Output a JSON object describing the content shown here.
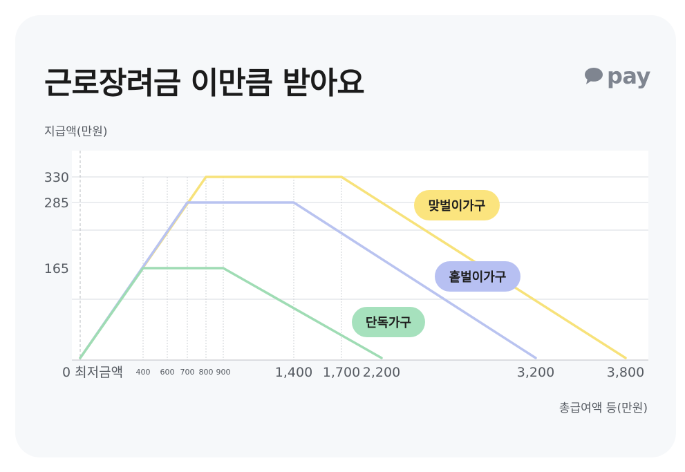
{
  "header": {
    "title": "근로장려금 이만큼 받아요",
    "brand": "pay",
    "brand_icon": "speech-bubble-icon"
  },
  "chart_data": {
    "type": "line",
    "title": "근로장려금 이만큼 받아요",
    "ylabel": "지급액(만원)",
    "xlabel": "총급여액 등(만원)",
    "x_origin_label": "0 최저금액",
    "ylim": [
      0,
      330
    ],
    "yticks": [
      {
        "value": 330,
        "label": "330"
      },
      {
        "value": 285,
        "label": "285"
      },
      {
        "value": 165,
        "label": "165"
      }
    ],
    "xticks": [
      {
        "value": 400,
        "label": "400",
        "size": "small"
      },
      {
        "value": 600,
        "label": "600",
        "size": "small"
      },
      {
        "value": 700,
        "label": "700",
        "size": "small"
      },
      {
        "value": 800,
        "label": "800",
        "size": "small"
      },
      {
        "value": 900,
        "label": "900",
        "size": "small"
      },
      {
        "value": 1400,
        "label": "1,400",
        "size": "big"
      },
      {
        "value": 1700,
        "label": "1,700",
        "size": "big"
      },
      {
        "value": 2200,
        "label": "2,200",
        "size": "big"
      },
      {
        "value": 3200,
        "label": "3,200",
        "size": "big"
      },
      {
        "value": 3800,
        "label": "3,800",
        "size": "big"
      }
    ],
    "series": [
      {
        "name": "맞벌이가구",
        "color": "#f7e27a",
        "pill_color": "#fbe47e",
        "points": [
          [
            0,
            0
          ],
          [
            800,
            330
          ],
          [
            1700,
            330
          ],
          [
            3800,
            0
          ]
        ]
      },
      {
        "name": "홑벌이가구",
        "color": "#b9c3f0",
        "pill_color": "#b7c0f2",
        "points": [
          [
            0,
            0
          ],
          [
            700,
            285
          ],
          [
            1400,
            285
          ],
          [
            3200,
            0
          ]
        ]
      },
      {
        "name": "단독가구",
        "color": "#9fdcb4",
        "pill_color": "#a6e1bd",
        "points": [
          [
            0,
            0
          ],
          [
            400,
            165
          ],
          [
            900,
            165
          ],
          [
            2200,
            0
          ]
        ]
      }
    ],
    "grid": true
  }
}
